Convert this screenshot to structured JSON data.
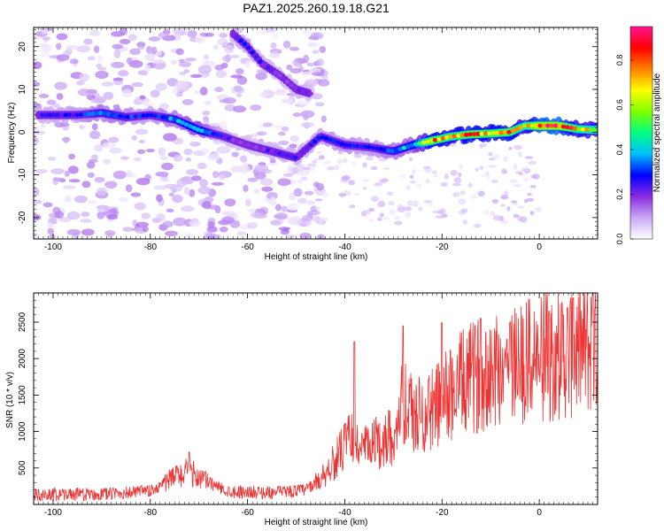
{
  "title": "PAZ1.2025.260.19.18.G21",
  "chart_data": [
    {
      "type": "heatmap",
      "xlabel": "Height of straight line (km)",
      "ylabel": "Frequency (Hz)",
      "xlim": [
        -104,
        12
      ],
      "ylim": [
        -25,
        24.5
      ],
      "xticks": [
        -100,
        -80,
        -60,
        -40,
        -20,
        0
      ],
      "yticks": [
        -20,
        -10,
        0,
        10,
        20
      ],
      "colorbar": {
        "label": "Normalized spectral amplitude",
        "range": [
          0,
          0.95
        ],
        "ticks": [
          0.0,
          0.2,
          0.4,
          0.6,
          0.8
        ],
        "ticklabels": [
          "0.0",
          "0.2",
          "0.4",
          "0.6",
          "0.8"
        ],
        "colors": [
          "#ffffff",
          "#c9a8f5",
          "#8a2be2",
          "#0000ff",
          "#00bfff",
          "#00ff80",
          "#7fff00",
          "#ffff00",
          "#ff7f00",
          "#ff0000",
          "#ff1493"
        ]
      },
      "ridge": [
        {
          "x": -103,
          "y": 4,
          "a": 0.25
        },
        {
          "x": -95,
          "y": 4,
          "a": 0.3
        },
        {
          "x": -90,
          "y": 4.5,
          "a": 0.4
        },
        {
          "x": -85,
          "y": 3.5,
          "a": 0.35
        },
        {
          "x": -80,
          "y": 4,
          "a": 0.3
        },
        {
          "x": -75,
          "y": 3,
          "a": 0.4
        },
        {
          "x": -70,
          "y": 0.5,
          "a": 0.5
        },
        {
          "x": -65,
          "y": -1,
          "a": 0.25
        },
        {
          "x": -60,
          "y": -3,
          "a": 0.2
        },
        {
          "x": -55,
          "y": -4.5,
          "a": 0.25
        },
        {
          "x": -50,
          "y": -6,
          "a": 0.25
        },
        {
          "x": -45,
          "y": -1,
          "a": 0.3
        },
        {
          "x": -40,
          "y": -3,
          "a": 0.35
        },
        {
          "x": -35,
          "y": -3.5,
          "a": 0.3
        },
        {
          "x": -30,
          "y": -4.5,
          "a": 0.4
        },
        {
          "x": -26,
          "y": -3,
          "a": 0.45
        },
        {
          "x": -22,
          "y": -2,
          "a": 0.85
        },
        {
          "x": -18,
          "y": -1,
          "a": 0.75
        },
        {
          "x": -14,
          "y": -0.5,
          "a": 0.85
        },
        {
          "x": -10,
          "y": -0.3,
          "a": 0.8
        },
        {
          "x": -6,
          "y": 0,
          "a": 0.85
        },
        {
          "x": -3,
          "y": 1.5,
          "a": 0.7
        },
        {
          "x": 0,
          "y": 1.5,
          "a": 0.95
        },
        {
          "x": 4,
          "y": 1.5,
          "a": 0.95
        },
        {
          "x": 8,
          "y": 0.7,
          "a": 0.75
        },
        {
          "x": 12,
          "y": 0.5,
          "a": 0.7
        }
      ],
      "secondary_ridge": [
        {
          "x": -63,
          "y": 23,
          "a": 0.25
        },
        {
          "x": -60,
          "y": 20,
          "a": 0.3
        },
        {
          "x": -57,
          "y": 16,
          "a": 0.25
        },
        {
          "x": -53,
          "y": 13,
          "a": 0.2
        },
        {
          "x": -50,
          "y": 10,
          "a": 0.25
        },
        {
          "x": -47,
          "y": 9,
          "a": 0.2
        }
      ]
    },
    {
      "type": "line",
      "xlabel": "Height of straight line (km)",
      "ylabel": "SNR (10 * v/v)",
      "xlim": [
        -104,
        12
      ],
      "ylim": [
        0,
        2900
      ],
      "xticks": [
        -100,
        -80,
        -60,
        -40,
        -20,
        0
      ],
      "yticks": [
        500,
        1000,
        1500,
        2000,
        2500
      ],
      "color": "#ee3333",
      "trend": [
        {
          "x": -104,
          "y": 130
        },
        {
          "x": -90,
          "y": 140
        },
        {
          "x": -80,
          "y": 180
        },
        {
          "x": -75,
          "y": 380
        },
        {
          "x": -72,
          "y": 450
        },
        {
          "x": -68,
          "y": 300
        },
        {
          "x": -64,
          "y": 180
        },
        {
          "x": -55,
          "y": 160
        },
        {
          "x": -48,
          "y": 200
        },
        {
          "x": -45,
          "y": 350
        },
        {
          "x": -42,
          "y": 600
        },
        {
          "x": -39,
          "y": 900
        },
        {
          "x": -36,
          "y": 750
        },
        {
          "x": -33,
          "y": 850
        },
        {
          "x": -30,
          "y": 950
        },
        {
          "x": -28,
          "y": 1400
        },
        {
          "x": -26,
          "y": 1200
        },
        {
          "x": -23,
          "y": 1250
        },
        {
          "x": -20,
          "y": 1450
        },
        {
          "x": -16,
          "y": 1650
        },
        {
          "x": -12,
          "y": 1800
        },
        {
          "x": -8,
          "y": 1900
        },
        {
          "x": -4,
          "y": 1950
        },
        {
          "x": 0,
          "y": 2000
        },
        {
          "x": 4,
          "y": 2050
        },
        {
          "x": 8,
          "y": 2100
        },
        {
          "x": 12,
          "y": 2200
        }
      ],
      "peaks": [
        {
          "x": -72,
          "y": 720
        },
        {
          "x": -38,
          "y": 2230
        },
        {
          "x": -28,
          "y": 2450
        },
        {
          "x": -20,
          "y": 2490
        },
        {
          "x": -12,
          "y": 2550
        },
        {
          "x": -6,
          "y": 2500
        },
        {
          "x": 2,
          "y": 2650
        },
        {
          "x": 7,
          "y": 2830
        },
        {
          "x": 11,
          "y": 2900
        }
      ]
    }
  ]
}
